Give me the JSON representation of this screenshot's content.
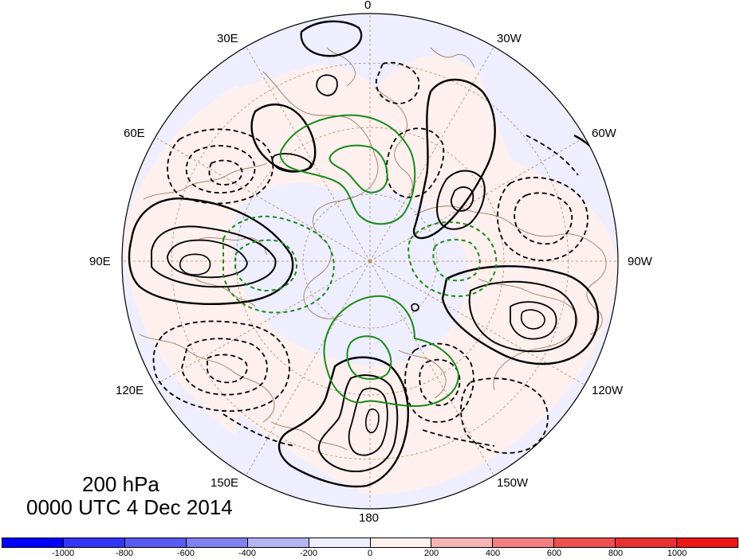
{
  "map": {
    "projection": "polar stereographic (North Pole)",
    "longitude_labels": [
      "0",
      "30W",
      "60W",
      "90W",
      "120W",
      "150W",
      "180",
      "150E",
      "120E",
      "90E",
      "60E",
      "30E"
    ],
    "contour_colors": {
      "solid": "#000000",
      "dashed": "#000000",
      "green": "#1a8a1a",
      "coast": "#9c7c63",
      "grid": "#b08a5a"
    },
    "shading_colors": {
      "negative_band": "#eeeeff",
      "positive_band": "#fdf0ee"
    }
  },
  "title": {
    "level": "200 hPa",
    "time": "0000 UTC 4 Dec 2014"
  },
  "colorbar": {
    "tick_labels": [
      "-1000",
      "-800",
      "-600",
      "-400",
      "-200",
      "0",
      "200",
      "400",
      "600",
      "800",
      "1000"
    ],
    "colors": [
      "#0000ff",
      "#3535f5",
      "#5a5af0",
      "#8080f0",
      "#b4b4f5",
      "#eeeeff",
      "#fdf0ee",
      "#f6b4b4",
      "#f28080",
      "#ee5050",
      "#ea3030",
      "#ee1515"
    ]
  }
}
